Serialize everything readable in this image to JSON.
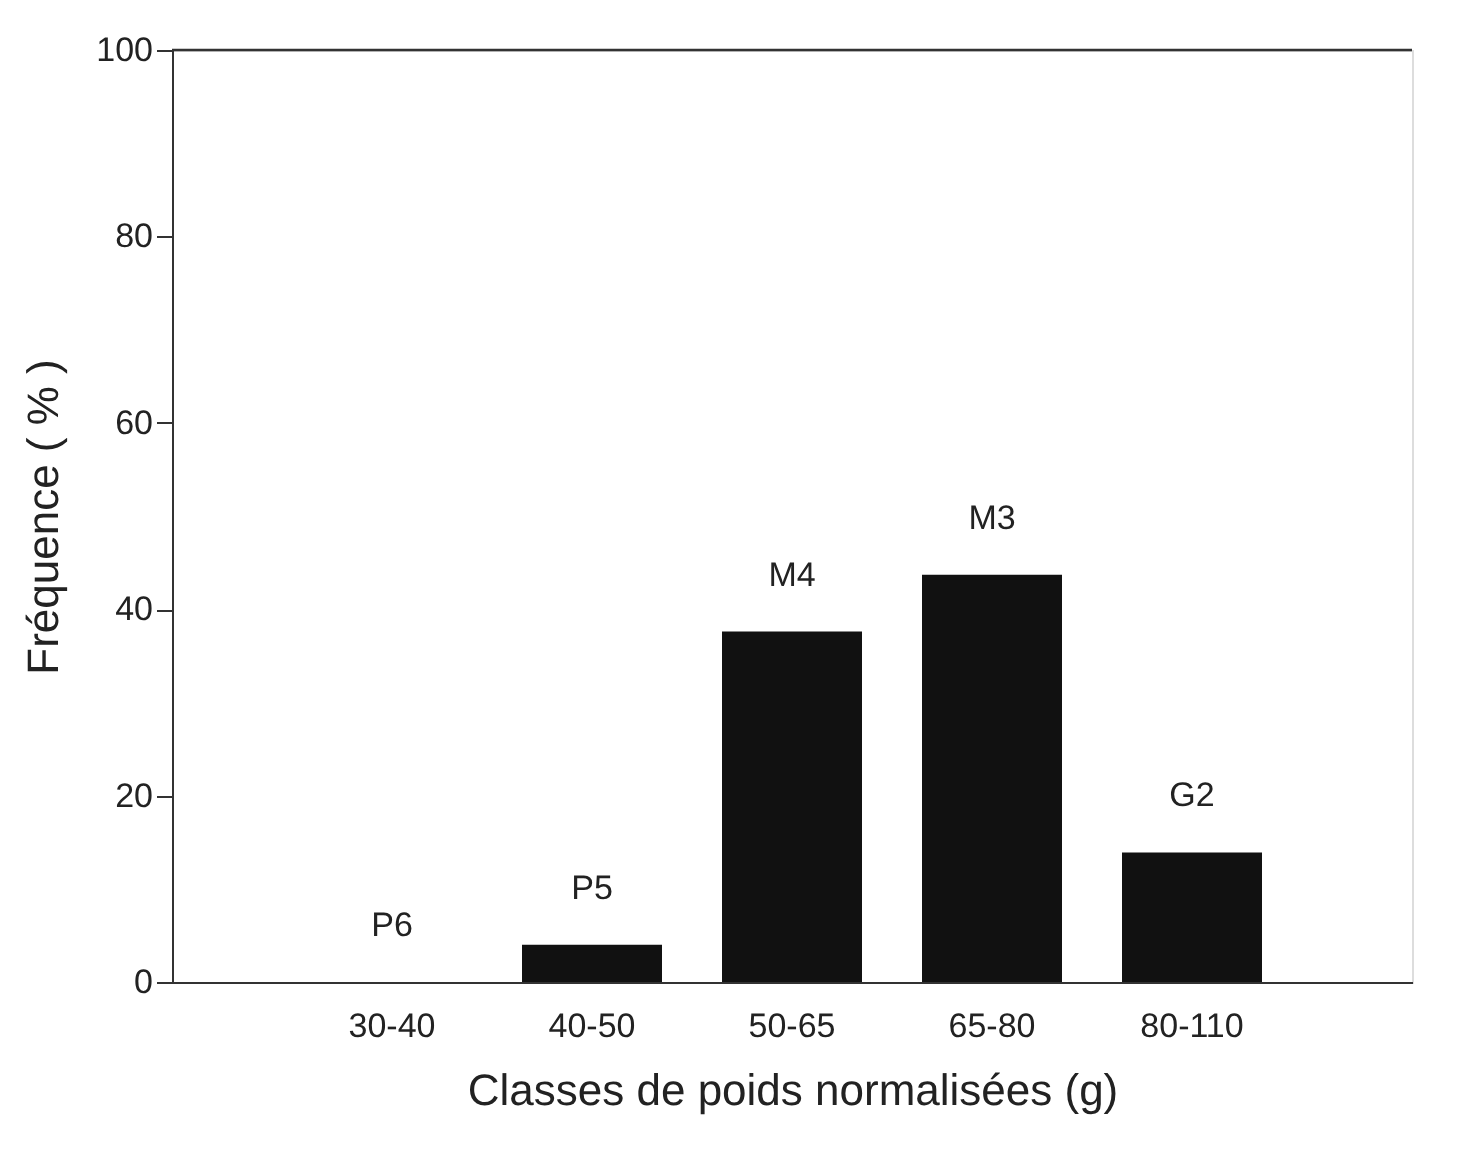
{
  "chart_data": {
    "type": "bar",
    "xlabel": "Classes de poids normalisées  (g)",
    "ylabel": "Fréquence ( % )",
    "categories": [
      "30-40",
      "40-50",
      "50-65",
      "65-80",
      "80-110"
    ],
    "values": [
      0,
      4,
      37.6,
      43.7,
      13.9
    ],
    "color": "#111111",
    "ylim": [
      0,
      100
    ],
    "yticks": [
      0,
      20,
      40,
      60,
      80,
      100
    ],
    "grid": false,
    "ref_lines": [
      {
        "axis": "y",
        "value": 100,
        "color": "#333333"
      }
    ],
    "value_labels": [
      "P6",
      "P5",
      "M4",
      "M3",
      "G2"
    ]
  }
}
